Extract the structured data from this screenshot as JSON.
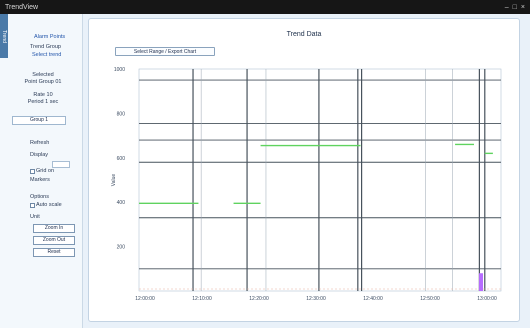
{
  "window": {
    "title": "TrendView",
    "controls": [
      "–",
      "□",
      "×"
    ]
  },
  "sidebar": {
    "tab_label": "Trend",
    "lines": [
      "Alarm Points",
      "Trend Group",
      "Select trend",
      "Selected",
      "Point Group 01",
      "Rate 10",
      "Period 1 sec",
      "Refresh",
      "Display",
      "Grid on",
      "Markers",
      "Options",
      "Auto scale",
      "Unit"
    ],
    "select_value": "Group 1",
    "buttons": [
      "Zoom In",
      "Zoom Out",
      "Reset"
    ]
  },
  "chart_header": {
    "title": "Trend Data",
    "button_label": "Select Range / Export Chart"
  },
  "chart_data": {
    "type": "line",
    "title": "Trend Data",
    "ylabel": "Value",
    "ylim": [
      0,
      1000
    ],
    "yticks": [
      "",
      "200",
      "400",
      "600",
      "800",
      "1000"
    ],
    "x_tick_labels": [
      "12:00:00",
      "12:10:00",
      "12:20:00",
      "12:30:00",
      "12:40:00",
      "12:50:00",
      "13:00:00"
    ],
    "grid": true,
    "series": [
      {
        "color": "#5fd35f",
        "segments": [
          {
            "x": [
              0,
              1.1
            ],
            "y": [
              395,
              395
            ]
          },
          {
            "x": [
              1.75,
              2.25
            ],
            "y": [
              395,
              395
            ]
          },
          {
            "x": [
              2.25,
              4.1
            ],
            "y": [
              655,
              655
            ]
          },
          {
            "x": [
              5.85,
              6.2
            ],
            "y": [
              660,
              660
            ]
          },
          {
            "x": [
              6.4,
              6.55
            ],
            "y": [
              620,
              620
            ]
          }
        ]
      }
    ],
    "bar_marker": {
      "x": 6.33,
      "y_top": 80,
      "color": "#b76cff"
    },
    "vertical_markers": [
      1.0,
      2.0,
      3.33,
      4.05,
      4.12,
      6.3,
      6.4
    ],
    "thin_verticals": [
      1.15,
      2.35,
      5.3,
      5.8
    ],
    "horizontal_lines": [
      100,
      330,
      580,
      680,
      755,
      950
    ]
  },
  "colors": {
    "accent": "#2255aa",
    "grid": "#47525c",
    "series": "#5fd35f",
    "marker": "#b76cff"
  }
}
